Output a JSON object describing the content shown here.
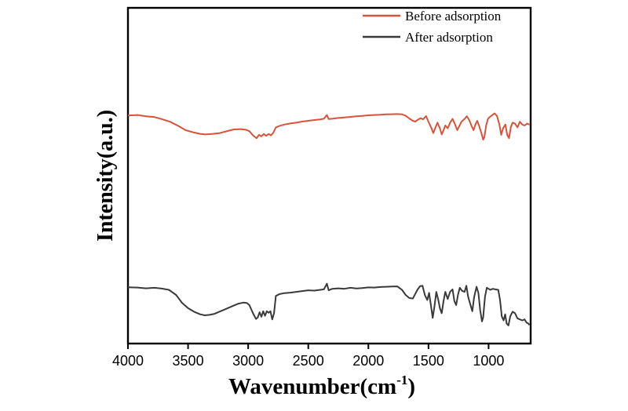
{
  "chart_data": {
    "type": "line",
    "xlabel": "Wavenumber(cm",
    "xlabel_sup": "-1",
    "xlabel_close": ")",
    "ylabel": "Intensity(a.u.)",
    "xlim": [
      4000,
      650
    ],
    "x_reversed": true,
    "xticks": [
      4000,
      3500,
      3000,
      2500,
      2000,
      1500,
      1000
    ],
    "y_ticks_shown": false,
    "grid": false,
    "legend_position": "top-right",
    "series": [
      {
        "name": "Before adsorption",
        "color": "#d9533a",
        "points": [
          [
            4000,
            0.856
          ],
          [
            3920,
            0.862
          ],
          [
            3850,
            0.848
          ],
          [
            3780,
            0.84
          ],
          [
            3720,
            0.818
          ],
          [
            3650,
            0.79
          ],
          [
            3580,
            0.745
          ],
          [
            3520,
            0.7
          ],
          [
            3460,
            0.678
          ],
          [
            3400,
            0.662
          ],
          [
            3360,
            0.655
          ],
          [
            3300,
            0.66
          ],
          [
            3240,
            0.668
          ],
          [
            3180,
            0.688
          ],
          [
            3120,
            0.708
          ],
          [
            3060,
            0.712
          ],
          [
            3020,
            0.705
          ],
          [
            2990,
            0.69
          ],
          [
            2960,
            0.645
          ],
          [
            2930,
            0.615
          ],
          [
            2910,
            0.65
          ],
          [
            2890,
            0.635
          ],
          [
            2870,
            0.66
          ],
          [
            2850,
            0.64
          ],
          [
            2830,
            0.66
          ],
          [
            2810,
            0.645
          ],
          [
            2790,
            0.675
          ],
          [
            2770,
            0.73
          ],
          [
            2740,
            0.745
          ],
          [
            2700,
            0.76
          ],
          [
            2650,
            0.772
          ],
          [
            2600,
            0.78
          ],
          [
            2550,
            0.792
          ],
          [
            2500,
            0.8
          ],
          [
            2450,
            0.808
          ],
          [
            2400,
            0.815
          ],
          [
            2370,
            0.822
          ],
          [
            2345,
            0.862
          ],
          [
            2330,
            0.818
          ],
          [
            2300,
            0.822
          ],
          [
            2250,
            0.83
          ],
          [
            2200,
            0.836
          ],
          [
            2150,
            0.842
          ],
          [
            2100,
            0.848
          ],
          [
            2050,
            0.852
          ],
          [
            2000,
            0.858
          ],
          [
            1950,
            0.862
          ],
          [
            1900,
            0.864
          ],
          [
            1850,
            0.868
          ],
          [
            1800,
            0.87
          ],
          [
            1760,
            0.872
          ],
          [
            1720,
            0.868
          ],
          [
            1690,
            0.855
          ],
          [
            1660,
            0.825
          ],
          [
            1630,
            0.8
          ],
          [
            1610,
            0.792
          ],
          [
            1590,
            0.81
          ],
          [
            1565,
            0.828
          ],
          [
            1545,
            0.815
          ],
          [
            1520,
            0.85
          ],
          [
            1500,
            0.79
          ],
          [
            1475,
            0.72
          ],
          [
            1460,
            0.67
          ],
          [
            1445,
            0.72
          ],
          [
            1425,
            0.78
          ],
          [
            1405,
            0.72
          ],
          [
            1390,
            0.655
          ],
          [
            1375,
            0.7
          ],
          [
            1360,
            0.75
          ],
          [
            1340,
            0.72
          ],
          [
            1320,
            0.78
          ],
          [
            1300,
            0.82
          ],
          [
            1280,
            0.765
          ],
          [
            1260,
            0.7
          ],
          [
            1245,
            0.74
          ],
          [
            1225,
            0.79
          ],
          [
            1200,
            0.82
          ],
          [
            1180,
            0.848
          ],
          [
            1160,
            0.805
          ],
          [
            1140,
            0.74
          ],
          [
            1125,
            0.7
          ],
          [
            1110,
            0.76
          ],
          [
            1095,
            0.8
          ],
          [
            1080,
            0.75
          ],
          [
            1060,
            0.67
          ],
          [
            1045,
            0.6
          ],
          [
            1035,
            0.625
          ],
          [
            1020,
            0.75
          ],
          [
            1005,
            0.82
          ],
          [
            990,
            0.84
          ],
          [
            970,
            0.86
          ],
          [
            950,
            0.878
          ],
          [
            930,
            0.852
          ],
          [
            910,
            0.76
          ],
          [
            895,
            0.65
          ],
          [
            880,
            0.72
          ],
          [
            860,
            0.76
          ],
          [
            845,
            0.65
          ],
          [
            830,
            0.615
          ],
          [
            815,
            0.73
          ],
          [
            800,
            0.78
          ],
          [
            780,
            0.77
          ],
          [
            760,
            0.73
          ],
          [
            740,
            0.79
          ],
          [
            720,
            0.76
          ],
          [
            700,
            0.75
          ],
          [
            680,
            0.77
          ],
          [
            660,
            0.76
          ]
        ]
      },
      {
        "name": "After adsorption",
        "color": "#3a3a3a",
        "points": [
          [
            4000,
            0.375
          ],
          [
            3920,
            0.372
          ],
          [
            3850,
            0.365
          ],
          [
            3780,
            0.37
          ],
          [
            3720,
            0.362
          ],
          [
            3660,
            0.35
          ],
          [
            3600,
            0.3
          ],
          [
            3550,
            0.222
          ],
          [
            3500,
            0.17
          ],
          [
            3450,
            0.135
          ],
          [
            3400,
            0.11
          ],
          [
            3360,
            0.1
          ],
          [
            3320,
            0.105
          ],
          [
            3280,
            0.115
          ],
          [
            3240,
            0.135
          ],
          [
            3180,
            0.165
          ],
          [
            3120,
            0.195
          ],
          [
            3080,
            0.215
          ],
          [
            3040,
            0.225
          ],
          [
            3010,
            0.22
          ],
          [
            2990,
            0.2
          ],
          [
            2960,
            0.12
          ],
          [
            2935,
            0.065
          ],
          [
            2920,
            0.08
          ],
          [
            2905,
            0.13
          ],
          [
            2890,
            0.085
          ],
          [
            2875,
            0.14
          ],
          [
            2860,
            0.095
          ],
          [
            2845,
            0.14
          ],
          [
            2830,
            0.125
          ],
          [
            2815,
            0.14
          ],
          [
            2800,
            0.06
          ],
          [
            2785,
            0.12
          ],
          [
            2770,
            0.29
          ],
          [
            2740,
            0.308
          ],
          [
            2700,
            0.318
          ],
          [
            2650,
            0.322
          ],
          [
            2600,
            0.33
          ],
          [
            2550,
            0.338
          ],
          [
            2500,
            0.345
          ],
          [
            2450,
            0.342
          ],
          [
            2400,
            0.35
          ],
          [
            2370,
            0.355
          ],
          [
            2345,
            0.41
          ],
          [
            2330,
            0.345
          ],
          [
            2300,
            0.36
          ],
          [
            2250,
            0.365
          ],
          [
            2200,
            0.36
          ],
          [
            2150,
            0.37
          ],
          [
            2100,
            0.364
          ],
          [
            2050,
            0.368
          ],
          [
            2000,
            0.374
          ],
          [
            1950,
            0.372
          ],
          [
            1900,
            0.378
          ],
          [
            1850,
            0.38
          ],
          [
            1800,
            0.382
          ],
          [
            1760,
            0.384
          ],
          [
            1720,
            0.35
          ],
          [
            1690,
            0.3
          ],
          [
            1660,
            0.27
          ],
          [
            1630,
            0.265
          ],
          [
            1610,
            0.31
          ],
          [
            1590,
            0.355
          ],
          [
            1570,
            0.385
          ],
          [
            1550,
            0.39
          ],
          [
            1530,
            0.3
          ],
          [
            1510,
            0.25
          ],
          [
            1495,
            0.32
          ],
          [
            1480,
            0.2
          ],
          [
            1465,
            0.075
          ],
          [
            1450,
            0.19
          ],
          [
            1435,
            0.33
          ],
          [
            1420,
            0.26
          ],
          [
            1405,
            0.17
          ],
          [
            1390,
            0.12
          ],
          [
            1375,
            0.24
          ],
          [
            1360,
            0.33
          ],
          [
            1340,
            0.26
          ],
          [
            1320,
            0.33
          ],
          [
            1300,
            0.355
          ],
          [
            1285,
            0.24
          ],
          [
            1270,
            0.2
          ],
          [
            1255,
            0.3
          ],
          [
            1240,
            0.37
          ],
          [
            1220,
            0.34
          ],
          [
            1200,
            0.33
          ],
          [
            1185,
            0.39
          ],
          [
            1170,
            0.28
          ],
          [
            1150,
            0.2
          ],
          [
            1135,
            0.14
          ],
          [
            1120,
            0.28
          ],
          [
            1100,
            0.38
          ],
          [
            1085,
            0.32
          ],
          [
            1070,
            0.15
          ],
          [
            1055,
            0.04
          ],
          [
            1045,
            0.08
          ],
          [
            1030,
            0.28
          ],
          [
            1015,
            0.37
          ],
          [
            1000,
            0.36
          ],
          [
            985,
            0.35
          ],
          [
            965,
            0.36
          ],
          [
            945,
            0.355
          ],
          [
            920,
            0.35
          ],
          [
            905,
            0.25
          ],
          [
            890,
            0.09
          ],
          [
            875,
            0.05
          ],
          [
            862,
            0.11
          ],
          [
            850,
            0.02
          ],
          [
            835,
            0.0
          ],
          [
            820,
            0.09
          ],
          [
            800,
            0.135
          ],
          [
            780,
            0.12
          ],
          [
            760,
            0.07
          ],
          [
            740,
            0.06
          ],
          [
            720,
            0.05
          ],
          [
            700,
            0.06
          ],
          [
            685,
            0.03
          ],
          [
            670,
            0.02
          ],
          [
            660,
            0.005
          ]
        ]
      }
    ]
  }
}
